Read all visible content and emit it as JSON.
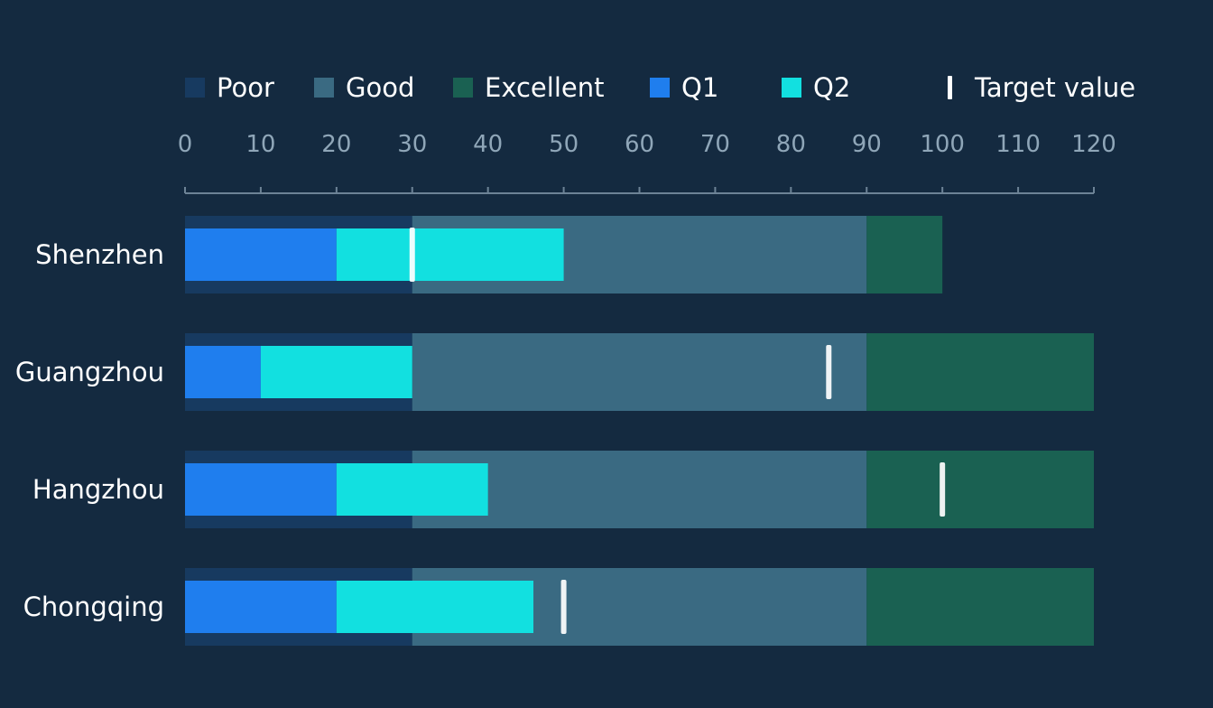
{
  "chart_data": {
    "type": "bar",
    "subtype": "bullet",
    "orientation": "horizontal",
    "title": "",
    "xlabel": "",
    "ylabel": "",
    "xlim": [
      0,
      120
    ],
    "x_ticks": [
      "0",
      "10",
      "20",
      "30",
      "40",
      "50",
      "60",
      "70",
      "80",
      "90",
      "100",
      "110",
      "120"
    ],
    "categories": [
      "Shenzhen",
      "Guangzhou",
      "Hangzhou",
      "Chongqing"
    ],
    "ranges": [
      {
        "name": "Poor",
        "color": "#173a60",
        "values": [
          [
            0,
            30
          ],
          [
            0,
            30
          ],
          [
            0,
            30
          ],
          [
            0,
            30
          ]
        ]
      },
      {
        "name": "Good",
        "color": "#3a6a82",
        "values": [
          [
            30,
            90
          ],
          [
            30,
            90
          ],
          [
            30,
            90
          ],
          [
            30,
            90
          ]
        ]
      },
      {
        "name": "Excellent",
        "color": "#1a6152",
        "values": [
          [
            90,
            100
          ],
          [
            90,
            120
          ],
          [
            90,
            120
          ],
          [
            90,
            120
          ]
        ]
      }
    ],
    "series": [
      {
        "name": "Q1",
        "color": "#1f7eee",
        "values": [
          20,
          10,
          20,
          20
        ]
      },
      {
        "name": "Q2",
        "color": "#12e0e0",
        "values": [
          30,
          20,
          20,
          26
        ]
      }
    ],
    "target": {
      "name": "Target value",
      "color": "#ffffff",
      "values": [
        30,
        85,
        100,
        50
      ]
    },
    "legend_position": "top",
    "grid": false
  }
}
